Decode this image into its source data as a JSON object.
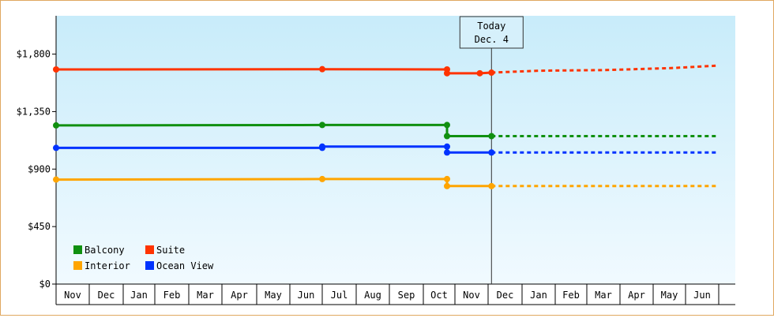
{
  "chart_data": {
    "type": "line",
    "y_axis": {
      "min": 0,
      "max": 2100,
      "tick_values": [
        0,
        450,
        900,
        1350,
        1800
      ],
      "tick_labels": [
        "$0",
        "$450",
        "$900",
        "$1,350",
        "$1,800"
      ]
    },
    "x_axis": {
      "months": [
        "Nov",
        "Dec",
        "Jan",
        "Feb",
        "Mar",
        "Apr",
        "May",
        "Jun",
        "Jul",
        "Aug",
        "Sep",
        "Oct",
        "Nov",
        "Dec",
        "Jan",
        "Feb",
        "Mar",
        "Apr",
        "May",
        "Jun"
      ]
    },
    "today": {
      "line1": "Today",
      "line2": "Dec. 4"
    },
    "legend": {
      "placement": "bottom-left",
      "columns": 2
    },
    "series": [
      {
        "name": "Balcony",
        "color": "#109010",
        "history": [
          [
            0.0,
            1242
          ],
          [
            8.0,
            1245
          ],
          [
            11.75,
            1245
          ],
          [
            11.75,
            1158
          ],
          [
            13.1,
            1158
          ]
        ],
        "history_markers": [
          0.0,
          8.0,
          11.75,
          13.1
        ],
        "forecast": [
          [
            13.1,
            1158
          ],
          [
            20.0,
            1158
          ]
        ]
      },
      {
        "name": "Suite",
        "color": "#ff3300",
        "history": [
          [
            0.0,
            1680
          ],
          [
            8.0,
            1682
          ],
          [
            11.75,
            1680
          ],
          [
            11.75,
            1650
          ],
          [
            12.75,
            1650
          ],
          [
            13.1,
            1655
          ]
        ],
        "history_markers": [
          0.0,
          8.0,
          11.75,
          12.75,
          13.1
        ],
        "forecast": [
          [
            13.1,
            1655
          ],
          [
            14.5,
            1670
          ],
          [
            16.5,
            1675
          ],
          [
            18.5,
            1690
          ],
          [
            20.0,
            1710
          ]
        ]
      },
      {
        "name": "Interior",
        "color": "#ffa500",
        "history": [
          [
            0.0,
            818
          ],
          [
            8.0,
            822
          ],
          [
            11.75,
            822
          ],
          [
            11.75,
            767
          ],
          [
            13.1,
            767
          ]
        ],
        "history_markers": [
          0.0,
          8.0,
          11.75,
          13.1
        ],
        "forecast": [
          [
            13.1,
            767
          ],
          [
            20.0,
            767
          ]
        ]
      },
      {
        "name": "Ocean View",
        "color": "#0033ff",
        "history": [
          [
            0.0,
            1066
          ],
          [
            8.0,
            1066
          ],
          [
            8.0,
            1076
          ],
          [
            11.75,
            1076
          ],
          [
            11.75,
            1030
          ],
          [
            13.1,
            1030
          ]
        ],
        "history_markers": [
          0.0,
          8.0,
          11.75,
          13.1
        ],
        "forecast": [
          [
            13.1,
            1030
          ],
          [
            20.0,
            1030
          ]
        ]
      }
    ]
  }
}
